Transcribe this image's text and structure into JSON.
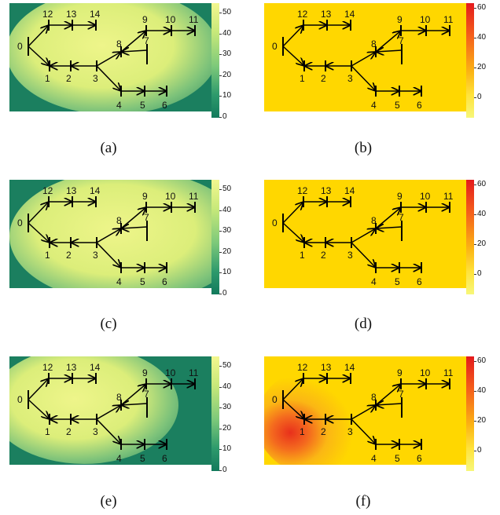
{
  "node_labels": [
    "0",
    "1",
    "2",
    "3",
    "4",
    "5",
    "6",
    "7",
    "8",
    "9",
    "10",
    "11",
    "12",
    "13",
    "14"
  ],
  "panels": [
    {
      "id": "a",
      "caption": "(a)",
      "colormap": "greenyellow",
      "ticks": [
        "50",
        "40",
        "30",
        "20",
        "10",
        "0"
      ]
    },
    {
      "id": "b",
      "caption": "(b)",
      "colormap": "yellowred",
      "ticks": [
        "60",
        "40",
        "20",
        "0"
      ]
    },
    {
      "id": "c",
      "caption": "(c)",
      "colormap": "greenyellow",
      "ticks": [
        "50",
        "40",
        "30",
        "20",
        "10",
        "0"
      ]
    },
    {
      "id": "d",
      "caption": "(d)",
      "colormap": "yellowred",
      "ticks": [
        "60",
        "40",
        "20",
        "0"
      ]
    },
    {
      "id": "e",
      "caption": "(e)",
      "colormap": "greenyellow",
      "ticks": [
        "50",
        "40",
        "30",
        "20",
        "10",
        "0"
      ]
    },
    {
      "id": "f",
      "caption": "(f)",
      "colormap": "yellowred",
      "ticks": [
        "60",
        "40",
        "20",
        "0"
      ]
    }
  ],
  "colors": {
    "green_dark": "#1b7f5f",
    "green_mid": "#7cc27a",
    "yellow_light": "#eef58a",
    "flat_yellow": "#ffd700",
    "red_hot": "#e8301c",
    "cbar_red": "#e41a1c"
  }
}
